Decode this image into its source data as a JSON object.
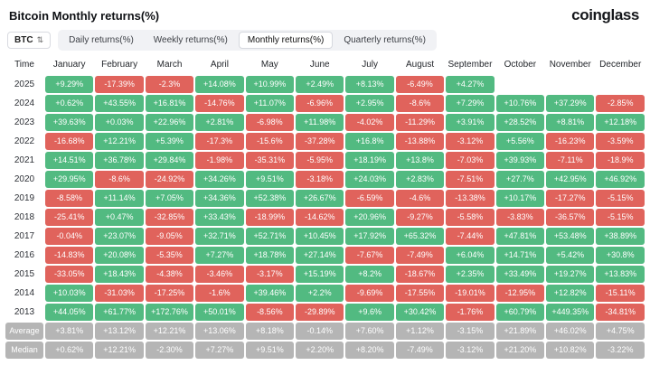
{
  "header": {
    "title": "Bitcoin Monthly returns(%)",
    "logo": "coinglass"
  },
  "toolbar": {
    "coin_selector": "BTC",
    "sort_icon_glyph": "⇅",
    "tabs": [
      {
        "label": "Daily returns(%)",
        "active": false
      },
      {
        "label": "Weekly returns(%)",
        "active": false
      },
      {
        "label": "Monthly returns(%)",
        "active": true
      },
      {
        "label": "Quarterly returns(%)",
        "active": false
      }
    ]
  },
  "colors": {
    "positive": "#52ba81",
    "negative": "#e0635c",
    "neutral": "#b5b5b5"
  },
  "chart_data": {
    "type": "heatmap",
    "title": "Bitcoin Monthly returns(%)",
    "legend_position": "none",
    "grid": false,
    "columns": [
      "Time",
      "January",
      "February",
      "March",
      "April",
      "May",
      "June",
      "July",
      "August",
      "September",
      "October",
      "November",
      "December"
    ],
    "rows": [
      {
        "label": "2025",
        "type": "year",
        "values": [
          "+9.29%",
          "-17.39%",
          "-2.3%",
          "+14.08%",
          "+10.99%",
          "+2.49%",
          "+8.13%",
          "-6.49%",
          "+4.27%",
          "",
          "",
          ""
        ]
      },
      {
        "label": "2024",
        "type": "year",
        "values": [
          "+0.62%",
          "+43.55%",
          "+16.81%",
          "-14.76%",
          "+11.07%",
          "-6.96%",
          "+2.95%",
          "-8.6%",
          "+7.29%",
          "+10.76%",
          "+37.29%",
          "-2.85%"
        ]
      },
      {
        "label": "2023",
        "type": "year",
        "values": [
          "+39.63%",
          "+0.03%",
          "+22.96%",
          "+2.81%",
          "-6.98%",
          "+11.98%",
          "-4.02%",
          "-11.29%",
          "+3.91%",
          "+28.52%",
          "+8.81%",
          "+12.18%"
        ]
      },
      {
        "label": "2022",
        "type": "year",
        "values": [
          "-16.68%",
          "+12.21%",
          "+5.39%",
          "-17.3%",
          "-15.6%",
          "-37.28%",
          "+16.8%",
          "-13.88%",
          "-3.12%",
          "+5.56%",
          "-16.23%",
          "-3.59%"
        ]
      },
      {
        "label": "2021",
        "type": "year",
        "values": [
          "+14.51%",
          "+36.78%",
          "+29.84%",
          "-1.98%",
          "-35.31%",
          "-5.95%",
          "+18.19%",
          "+13.8%",
          "-7.03%",
          "+39.93%",
          "-7.11%",
          "-18.9%"
        ]
      },
      {
        "label": "2020",
        "type": "year",
        "values": [
          "+29.95%",
          "-8.6%",
          "-24.92%",
          "+34.26%",
          "+9.51%",
          "-3.18%",
          "+24.03%",
          "+2.83%",
          "-7.51%",
          "+27.7%",
          "+42.95%",
          "+46.92%"
        ]
      },
      {
        "label": "2019",
        "type": "year",
        "values": [
          "-8.58%",
          "+11.14%",
          "+7.05%",
          "+34.36%",
          "+52.38%",
          "+26.67%",
          "-6.59%",
          "-4.6%",
          "-13.38%",
          "+10.17%",
          "-17.27%",
          "-5.15%"
        ]
      },
      {
        "label": "2018",
        "type": "year",
        "values": [
          "-25.41%",
          "+0.47%",
          "-32.85%",
          "+33.43%",
          "-18.99%",
          "-14.62%",
          "+20.96%",
          "-9.27%",
          "-5.58%",
          "-3.83%",
          "-36.57%",
          "-5.15%"
        ]
      },
      {
        "label": "2017",
        "type": "year",
        "values": [
          "-0.04%",
          "+23.07%",
          "-9.05%",
          "+32.71%",
          "+52.71%",
          "+10.45%",
          "+17.92%",
          "+65.32%",
          "-7.44%",
          "+47.81%",
          "+53.48%",
          "+38.89%"
        ]
      },
      {
        "label": "2016",
        "type": "year",
        "values": [
          "-14.83%",
          "+20.08%",
          "-5.35%",
          "+7.27%",
          "+18.78%",
          "+27.14%",
          "-7.67%",
          "-7.49%",
          "+6.04%",
          "+14.71%",
          "+5.42%",
          "+30.8%"
        ]
      },
      {
        "label": "2015",
        "type": "year",
        "values": [
          "-33.05%",
          "+18.43%",
          "-4.38%",
          "-3.46%",
          "-3.17%",
          "+15.19%",
          "+8.2%",
          "-18.67%",
          "+2.35%",
          "+33.49%",
          "+19.27%",
          "+13.83%"
        ]
      },
      {
        "label": "2014",
        "type": "year",
        "values": [
          "+10.03%",
          "-31.03%",
          "-17.25%",
          "-1.6%",
          "+39.46%",
          "+2.2%",
          "-9.69%",
          "-17.55%",
          "-19.01%",
          "-12.95%",
          "+12.82%",
          "-15.11%"
        ]
      },
      {
        "label": "2013",
        "type": "year",
        "values": [
          "+44.05%",
          "+61.77%",
          "+172.76%",
          "+50.01%",
          "-8.56%",
          "-29.89%",
          "+9.6%",
          "+30.42%",
          "-1.76%",
          "+60.79%",
          "+449.35%",
          "-34.81%"
        ]
      },
      {
        "label": "Average",
        "type": "stat",
        "values": [
          "+3.81%",
          "+13.12%",
          "+12.21%",
          "+13.06%",
          "+8.18%",
          "-0.14%",
          "+7.60%",
          "+1.12%",
          "-3.15%",
          "+21.89%",
          "+46.02%",
          "+4.75%"
        ]
      },
      {
        "label": "Median",
        "type": "stat",
        "values": [
          "+0.62%",
          "+12.21%",
          "-2.30%",
          "+7.27%",
          "+9.51%",
          "+2.20%",
          "+8.20%",
          "-7.49%",
          "-3.12%",
          "+21.20%",
          "+10.82%",
          "-3.22%"
        ]
      }
    ]
  }
}
